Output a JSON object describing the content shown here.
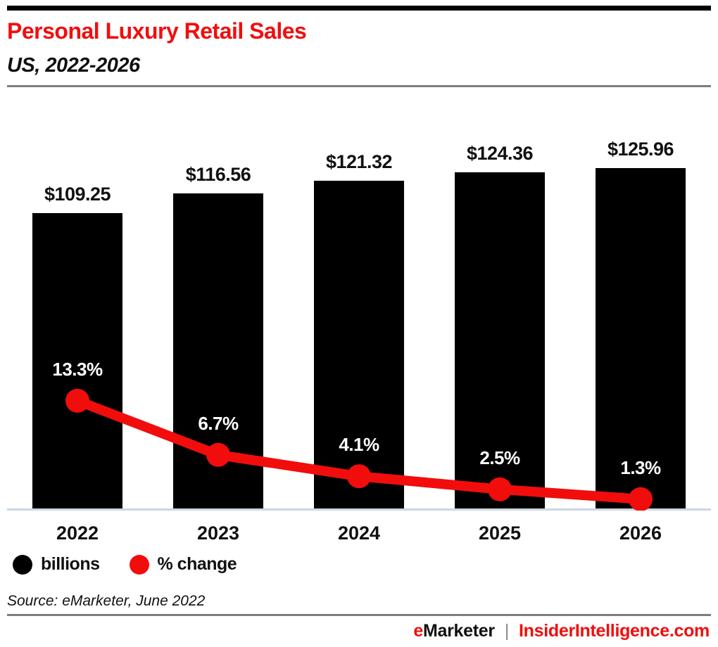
{
  "header": {
    "title": "Personal Luxury Retail Sales",
    "subtitle": "US, 2022-2026"
  },
  "chart_data": {
    "type": "bar",
    "title": "Personal Luxury Retail Sales",
    "subtitle": "US, 2022-2026",
    "categories": [
      "2022",
      "2023",
      "2024",
      "2025",
      "2026"
    ],
    "series": [
      {
        "name": "billions",
        "type": "bar",
        "color": "#000000",
        "values": [
          109.25,
          116.56,
          121.32,
          124.36,
          125.96
        ],
        "labels": [
          "$109.25",
          "$116.56",
          "$121.32",
          "$124.36",
          "$125.96"
        ]
      },
      {
        "name": "% change",
        "type": "line",
        "color": "#f20d0d",
        "values": [
          13.3,
          6.7,
          4.1,
          2.5,
          1.3
        ],
        "labels": [
          "13.3%",
          "6.7%",
          "4.1%",
          "2.5%",
          "1.3%"
        ]
      }
    ],
    "bar_ylim": [
      0,
      155
    ],
    "line_ylim": [
      0,
      51
    ],
    "grid": false,
    "legend_position": "bottom-left",
    "xlabel": "",
    "ylabel": ""
  },
  "legend": [
    {
      "label": "billions",
      "color": "#000000"
    },
    {
      "label": "% change",
      "color": "#f20d0d"
    }
  ],
  "source": "Source: eMarketer, June 2022",
  "footer": {
    "brand_e": "e",
    "brand_rest": "Marketer",
    "separator": "|",
    "site": "InsiderIntelligence.com"
  },
  "colors": {
    "accent_red": "#f20d0d",
    "bar_black": "#000000",
    "axis_line": "#ccd6e3",
    "divider_gray": "#7d7d7d",
    "pct_label_white": "#ffffff"
  }
}
